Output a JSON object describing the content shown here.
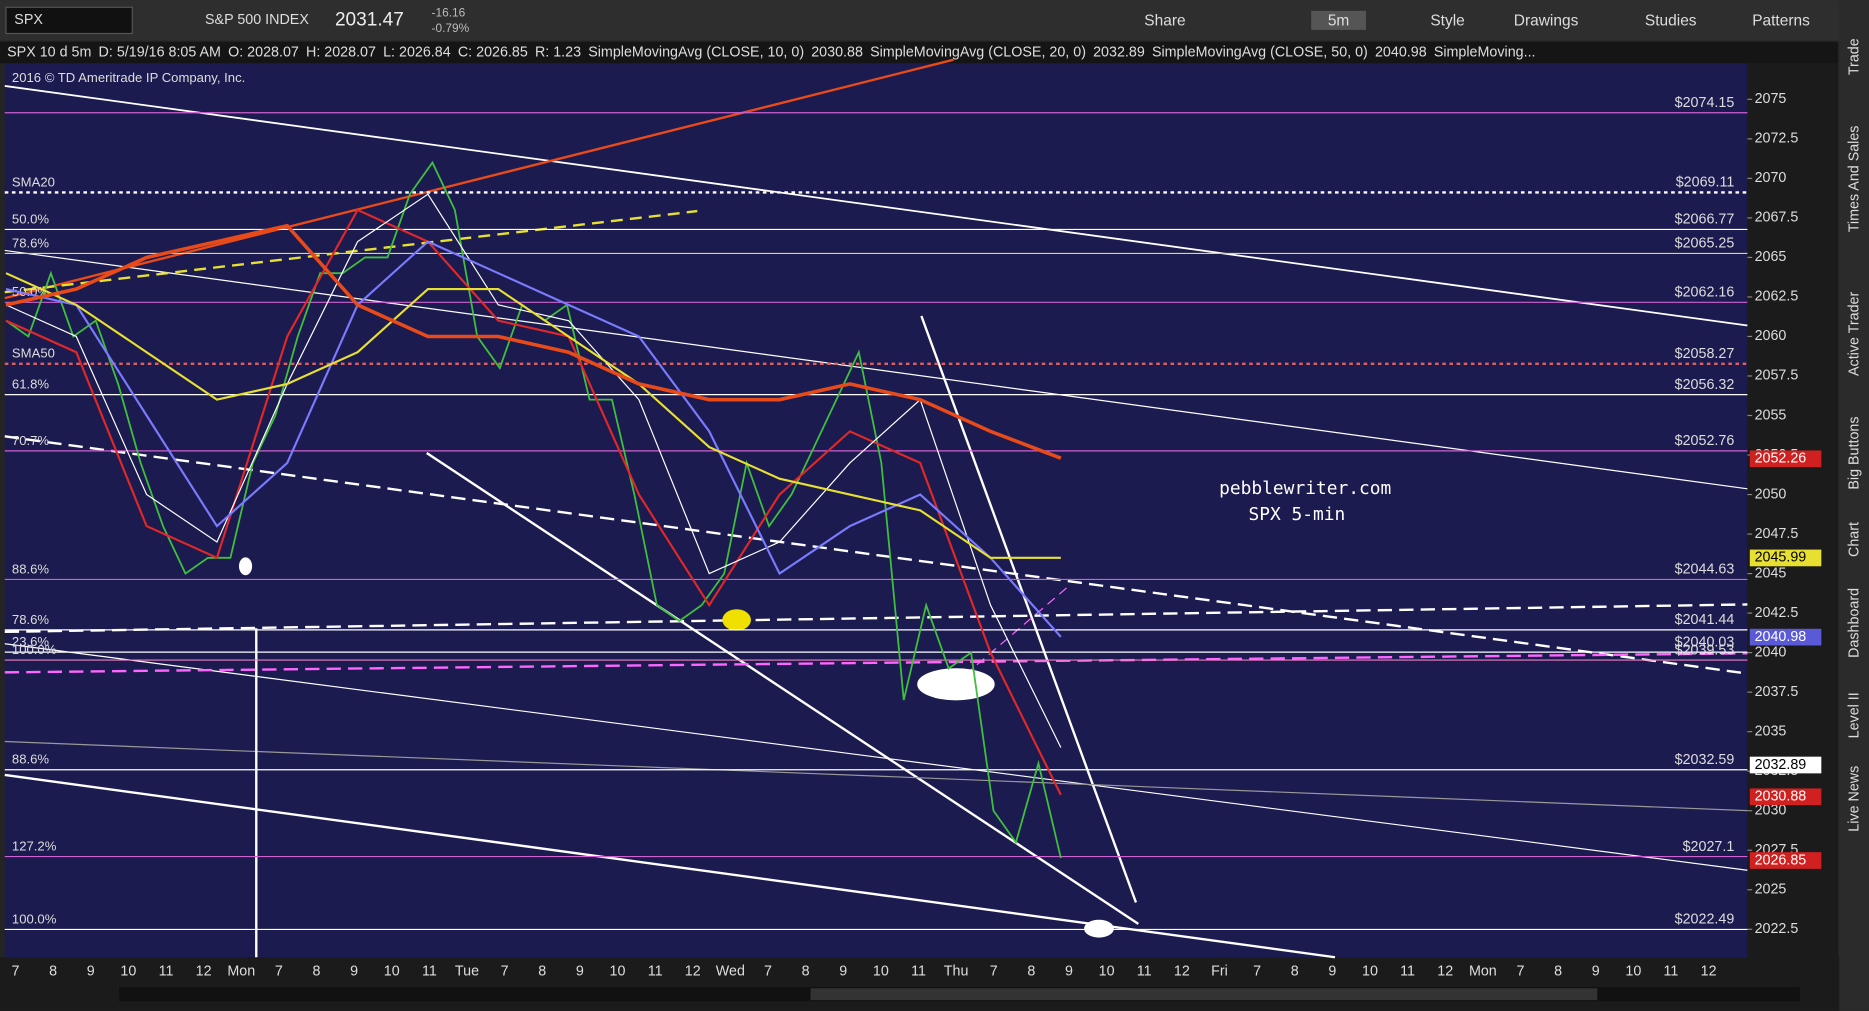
{
  "toolbar": {
    "symbol": "SPX",
    "index_name": "S&P 500 INDEX",
    "last": "2031.47",
    "change": "-16.16",
    "change_pct": "-0.79%",
    "buttons": [
      "Share",
      "5m",
      "Style",
      "Drawings",
      "Studies",
      "Patterns"
    ]
  },
  "header": {
    "items": [
      "SPX 10 d 5m",
      "D: 5/19/16 8:05 AM",
      "O: 2028.07",
      "H: 2028.07",
      "L: 2026.84",
      "C: 2026.85",
      "R: 1.23"
    ],
    "study_values": [
      "2030.88",
      "2032.89",
      "2040.98"
    ]
  },
  "watermark": "2016 © TD Ameritrade IP Company, Inc.",
  "annotation": [
    "pebblewriter.com",
    "SPX 5-min"
  ],
  "side_tabs": [
    "Trade",
    "Times And Sales",
    "Active Trader",
    "Big Buttons",
    "Chart",
    "Dashboard",
    "Level II",
    "Live News"
  ],
  "chart_data": {
    "type": "line",
    "ylim": [
      2020.73,
      2077.28
    ],
    "yticks": [
      2022.5,
      2025,
      2027.5,
      2030,
      2032.5,
      2035,
      2037.5,
      2040,
      2042.5,
      2045,
      2047.5,
      2050,
      2052.5,
      2055,
      2057.5,
      2060,
      2062.5,
      2065,
      2067.5,
      2070,
      2072.5,
      2075
    ],
    "x_labels": [
      "7",
      "8",
      "9",
      "10",
      "11",
      "12",
      "Mon",
      "7",
      "8",
      "9",
      "10",
      "11",
      "Tue",
      "7",
      "8",
      "9",
      "10",
      "11",
      "12",
      "Wed",
      "7",
      "8",
      "9",
      "10",
      "11",
      "Thu",
      "7",
      "8",
      "9",
      "10",
      "11",
      "12",
      "Fri",
      "7",
      "8",
      "9",
      "10",
      "11",
      "12",
      "Mon",
      "7",
      "8",
      "9",
      "10",
      "11",
      "12"
    ],
    "series": [
      {
        "color": "#3fbf3f",
        "values": [
          2061,
          2060,
          2064,
          2060,
          2061,
          2057,
          2052,
          2048,
          2045,
          2046,
          2046,
          2052,
          2055,
          2060,
          2064,
          2064,
          2065,
          2065,
          2069,
          2071,
          2068,
          2060,
          2058,
          2062,
          2061,
          2062,
          2056,
          2056,
          2050,
          2043,
          2042,
          2043,
          2045,
          2052,
          2048,
          2050,
          2053,
          2056,
          2059,
          2052,
          2037,
          2043,
          2039,
          2040,
          2030,
          2028,
          2033,
          2027
        ]
      },
      {
        "name": "SimpleMovingAvg (CLOSE, 10, 0)",
        "color": "#e02828",
        "values": [
          2061,
          2059,
          2048,
          2046,
          2060,
          2068,
          2066,
          2061,
          2060,
          2050,
          2043,
          2050,
          2054,
          2052,
          2040,
          2031
        ]
      },
      {
        "name": "SimpleMovingAvg (CLOSE, 20, 0)",
        "color": "#ffffff",
        "values": [
          2062,
          2060,
          2050,
          2047,
          2057,
          2066,
          2069,
          2062,
          2061,
          2056,
          2045,
          2047,
          2052,
          2056,
          2043,
          2034
        ]
      },
      {
        "name": "SimpleMovingAvg (CLOSE, 50, 0)",
        "color": "#7a7aff",
        "values": [
          2063,
          2062,
          2055,
          2048,
          2052,
          2062,
          2066,
          2064,
          2062,
          2060,
          2054,
          2045,
          2048,
          2050,
          2046,
          2041
        ]
      },
      {
        "name": "SimpleMoving...",
        "color": "#e8e030",
        "values": [
          2064,
          2062,
          2059,
          2056,
          2057,
          2059,
          2063,
          2063,
          2060,
          2057,
          2053,
          2051,
          2050,
          2049,
          2046,
          2046
        ]
      },
      {
        "color": "#e84a1a",
        "values": [
          2062,
          2063,
          2065,
          2066,
          2067,
          2062,
          2060,
          2060,
          2059,
          2057,
          2056,
          2056,
          2057,
          2056,
          2054,
          2052.3
        ]
      }
    ],
    "levels": [
      {
        "value": 2074.15,
        "price": "$2074.15",
        "color": "#d060d0"
      },
      {
        "value": 2069.11,
        "label": "SMA20",
        "price": "$2069.11",
        "color": "#ffffff",
        "style": "dotted"
      },
      {
        "value": 2066.77,
        "label": "50.0%",
        "price": "$2066.77",
        "color": "#ffffff"
      },
      {
        "value": 2065.25,
        "label": "78.6%",
        "price": "$2065.25",
        "color": "#e8e030"
      },
      {
        "value": 2062.16,
        "label": "50.0%",
        "price": "$2062.16",
        "color": "#d060d0"
      },
      {
        "value": 2058.27,
        "label": "SMA50",
        "price": "$2058.27",
        "color": "#e06060",
        "style": "dotted"
      },
      {
        "value": 2056.32,
        "label": "61.8%",
        "price": "$2056.32",
        "color": "#ffffff"
      },
      {
        "value": 2052.76,
        "label": "70.7%",
        "price": "$2052.76",
        "color": "#d060d0"
      },
      {
        "value": 2044.63,
        "label": "88.6%",
        "price": "$2044.63",
        "color": "#d060d0"
      },
      {
        "value": 2041.44,
        "label": "78.6%",
        "price": "$2041.44",
        "color": "#ffffff"
      },
      {
        "value": 2040.03,
        "label": "23.6%",
        "price": "$2040.03",
        "color": "#ffffff"
      },
      {
        "value": 2039.53,
        "label": "100.0%",
        "price": "$2039.53",
        "color": "#f080c0"
      },
      {
        "value": 2032.59,
        "label": "88.6%",
        "price": "$2032.59",
        "color": "#ffffff"
      },
      {
        "value": 2027.1,
        "label": "127.2%",
        "price": "$2027.1",
        "color": "#d060d0"
      },
      {
        "value": 2022.49,
        "label": "100.0%",
        "price": "$2022.49",
        "color": "#ffffff"
      }
    ],
    "price_tags": [
      {
        "value": 2052.26,
        "color": "#d02020"
      },
      {
        "value": 2045.99,
        "color": "#e8e030"
      },
      {
        "value": 2040.98,
        "color": "#5a5ad8"
      },
      {
        "value": 2032.89,
        "color": "#ffffff"
      },
      {
        "value": 2030.88,
        "color": "#d02020"
      },
      {
        "value": 2026.85,
        "color": "#d02020"
      }
    ]
  }
}
